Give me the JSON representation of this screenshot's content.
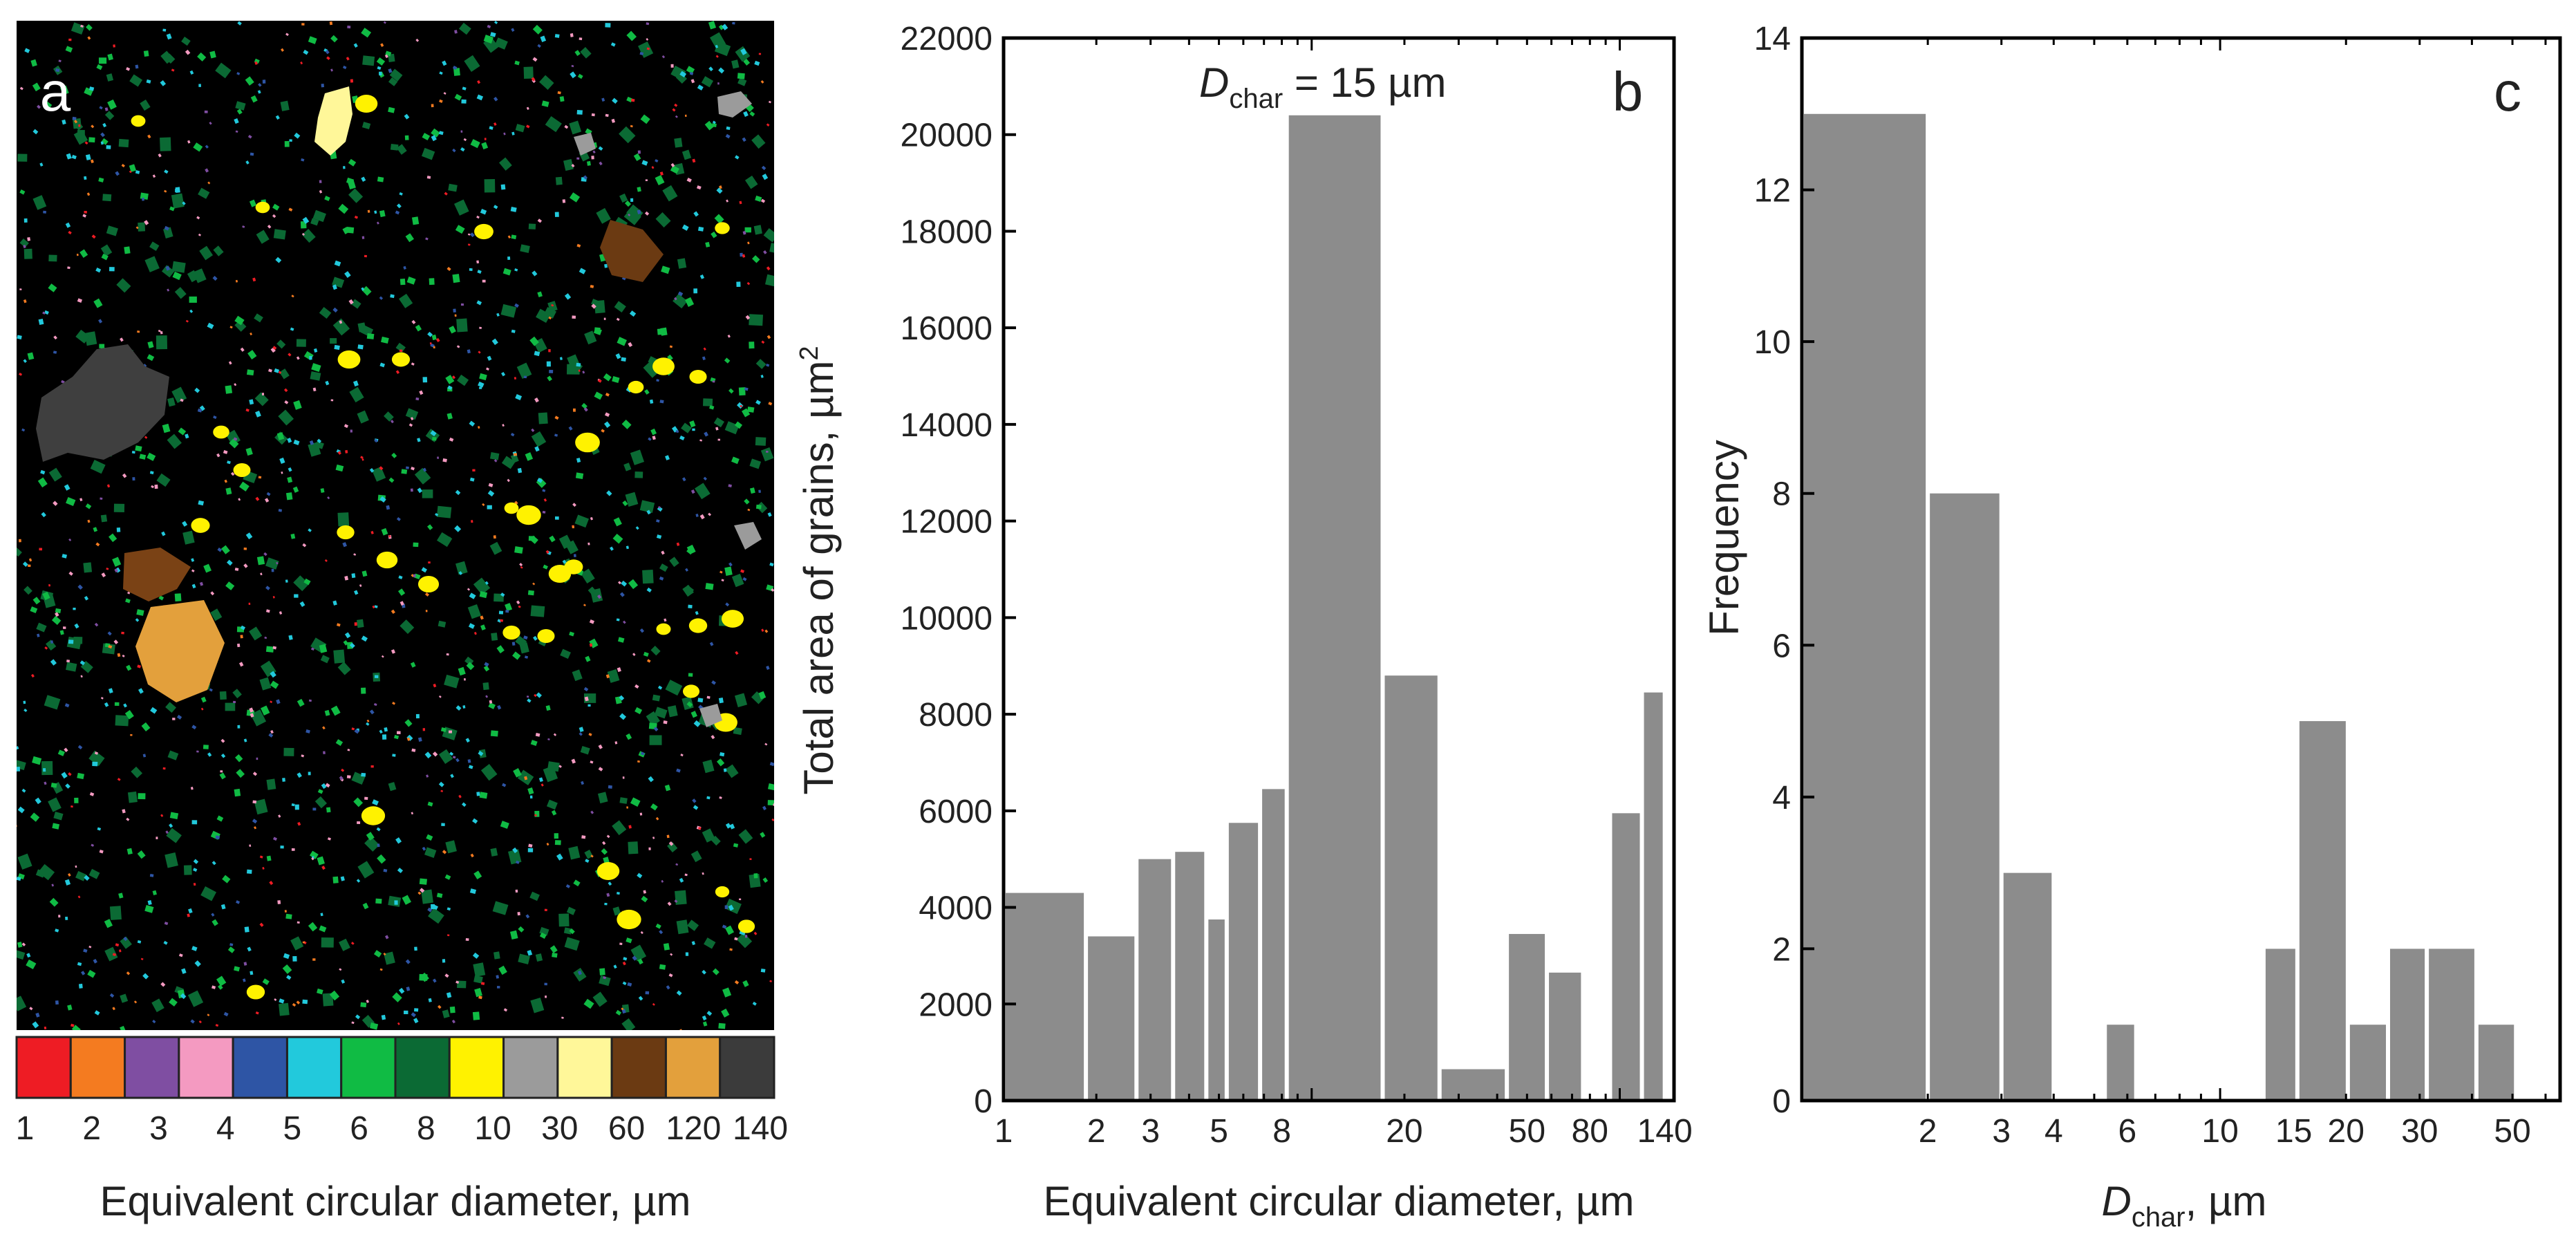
{
  "chart_data": [
    {
      "type": "image",
      "panel_label": "a",
      "description_kind": "phase map colored by equivalent circular diameter",
      "colorbar": {
        "colors": [
          "#ee1c24",
          "#f47b20",
          "#7f4ea2",
          "#f49ac1",
          "#2e55a5",
          "#22c9dc",
          "#10bb44",
          "#0b6a34",
          "#fff200",
          "#9b9b9b",
          "#fff799",
          "#6b3a12",
          "#e3a03c",
          "#3b3b3b"
        ],
        "tick_labels": [
          "1",
          "2",
          "3",
          "4",
          "5",
          "6",
          "8",
          "10",
          "30",
          "60",
          "120",
          "140"
        ]
      },
      "xlabel": "Equivalent circular diameter, µm"
    },
    {
      "type": "bar",
      "panel_label": "b",
      "annotation": {
        "prefix": "D",
        "subscript": "char",
        "rest": " = 15 µm"
      },
      "xlabel": "Equivalent circular diameter, µm",
      "ylabel": "Total area of grains, µm²",
      "xscale": "log",
      "xlim": [
        1,
        150
      ],
      "ylim": [
        0,
        22000
      ],
      "yticks": [
        0,
        2000,
        4000,
        6000,
        8000,
        10000,
        12000,
        14000,
        16000,
        18000,
        20000,
        22000
      ],
      "xtick_labels": [
        {
          "label": "1",
          "value": 1
        },
        {
          "label": "2",
          "value": 2
        },
        {
          "label": "3",
          "value": 3
        },
        {
          "label": "5",
          "value": 5
        },
        {
          "label": "8",
          "value": 8
        },
        {
          "label": "20",
          "value": 20
        },
        {
          "label": "50",
          "value": 50
        },
        {
          "label": "80",
          "value": 80
        },
        {
          "label": "140",
          "value": 140
        }
      ],
      "bins": [
        {
          "x0": 1.0,
          "x1": 1.85,
          "value": 4300
        },
        {
          "x0": 1.85,
          "x1": 2.7,
          "value": 3400
        },
        {
          "x0": 2.7,
          "x1": 3.55,
          "value": 5000
        },
        {
          "x0": 3.55,
          "x1": 4.55,
          "value": 5150
        },
        {
          "x0": 4.55,
          "x1": 5.3,
          "value": 3750
        },
        {
          "x0": 5.3,
          "x1": 6.8,
          "value": 5750
        },
        {
          "x0": 6.8,
          "x1": 8.3,
          "value": 6450
        },
        {
          "x0": 8.3,
          "x1": 17.0,
          "value": 20400
        },
        {
          "x0": 17.0,
          "x1": 26.0,
          "value": 8800
        },
        {
          "x0": 26.0,
          "x1": 43.0,
          "value": 650
        },
        {
          "x0": 43.0,
          "x1": 58.0,
          "value": 3450
        },
        {
          "x0": 58.0,
          "x1": 76.0,
          "value": 2650
        },
        {
          "x0": 93.0,
          "x1": 118.0,
          "value": 5950
        },
        {
          "x0": 118.0,
          "x1": 140.0,
          "value": 8450
        }
      ]
    },
    {
      "type": "bar",
      "panel_label": "c",
      "xlabel": {
        "prefix": "D",
        "subscript": "char",
        "rest": ", µm"
      },
      "ylabel": "Frequency",
      "xscale": "log",
      "xlim": [
        1,
        65
      ],
      "ylim": [
        0,
        14
      ],
      "yticks": [
        0,
        2,
        4,
        6,
        8,
        10,
        12,
        14
      ],
      "xtick_labels": [
        {
          "label": "2",
          "value": 2
        },
        {
          "label": "3",
          "value": 3
        },
        {
          "label": "4",
          "value": 4
        },
        {
          "label": "6",
          "value": 6
        },
        {
          "label": "10",
          "value": 10
        },
        {
          "label": "15",
          "value": 15
        },
        {
          "label": "20",
          "value": 20
        },
        {
          "label": "30",
          "value": 30
        },
        {
          "label": "50",
          "value": 50
        }
      ],
      "bins": [
        {
          "x0": 1.0,
          "x1": 2.0,
          "value": 13
        },
        {
          "x0": 2.0,
          "x1": 3.0,
          "value": 8
        },
        {
          "x0": 3.0,
          "x1": 4.0,
          "value": 3
        },
        {
          "x0": 5.3,
          "x1": 6.3,
          "value": 1
        },
        {
          "x0": 12.7,
          "x1": 15.3,
          "value": 2
        },
        {
          "x0": 15.3,
          "x1": 20.2,
          "value": 5
        },
        {
          "x0": 20.2,
          "x1": 25.2,
          "value": 1
        },
        {
          "x0": 25.2,
          "x1": 31.2,
          "value": 2
        },
        {
          "x0": 31.2,
          "x1": 41.0,
          "value": 2
        },
        {
          "x0": 41.0,
          "x1": 51.0,
          "value": 1
        }
      ]
    }
  ]
}
